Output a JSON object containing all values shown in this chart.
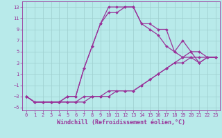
{
  "xlabel": "Windchill (Refroidissement éolien,°C)",
  "xlim": [
    -0.5,
    23.5
  ],
  "ylim": [
    -5.5,
    14
  ],
  "xticks": [
    0,
    1,
    2,
    3,
    4,
    5,
    6,
    7,
    8,
    9,
    10,
    11,
    12,
    13,
    14,
    15,
    16,
    17,
    18,
    19,
    20,
    21,
    22,
    23
  ],
  "yticks": [
    -5,
    -3,
    -1,
    1,
    3,
    5,
    7,
    9,
    11,
    13
  ],
  "background_color": "#b8eaea",
  "grid_color": "#9ecece",
  "line_color": "#993399",
  "lines": [
    {
      "x": [
        0,
        1,
        2,
        3,
        4,
        5,
        6,
        7,
        8,
        9,
        10,
        11,
        12,
        13,
        14,
        15,
        16,
        17,
        18,
        19,
        20,
        21,
        22,
        23
      ],
      "y": [
        -3,
        -4,
        -4,
        -4,
        -4,
        -3,
        -3,
        2,
        6,
        10,
        13,
        13,
        13,
        13,
        10,
        10,
        9,
        9,
        5,
        7,
        5,
        5,
        4,
        4
      ]
    },
    {
      "x": [
        0,
        1,
        2,
        3,
        4,
        5,
        6,
        7,
        8,
        9,
        10,
        11,
        12,
        13,
        14,
        15,
        16,
        17,
        18,
        19,
        20,
        21,
        22,
        23
      ],
      "y": [
        -3,
        -4,
        -4,
        -4,
        -4,
        -3,
        -3,
        2,
        6,
        10,
        12,
        12,
        13,
        13,
        10,
        9,
        8,
        6,
        5,
        4,
        4,
        4,
        4,
        4
      ]
    },
    {
      "x": [
        0,
        1,
        2,
        3,
        4,
        5,
        6,
        7,
        8,
        9,
        10,
        11,
        12,
        13,
        14,
        15,
        16,
        17,
        18,
        19,
        20,
        21,
        22,
        23
      ],
      "y": [
        -3,
        -4,
        -4,
        -4,
        -4,
        -4,
        -4,
        -3,
        -3,
        -3,
        -2,
        -2,
        -2,
        -2,
        -1,
        0,
        1,
        2,
        3,
        4,
        5,
        3,
        4,
        4
      ]
    },
    {
      "x": [
        0,
        1,
        2,
        3,
        4,
        5,
        6,
        7,
        8,
        9,
        10,
        11,
        12,
        13,
        14,
        15,
        16,
        17,
        18,
        19,
        20,
        21,
        22,
        23
      ],
      "y": [
        -3,
        -4,
        -4,
        -4,
        -4,
        -4,
        -4,
        -4,
        -3,
        -3,
        -3,
        -2,
        -2,
        -2,
        -1,
        0,
        1,
        2,
        3,
        3,
        4,
        3,
        4,
        4
      ]
    }
  ],
  "marker": "D",
  "marker_size": 2,
  "line_width": 0.9,
  "tick_fontsize": 5.0,
  "label_fontsize": 6.0
}
